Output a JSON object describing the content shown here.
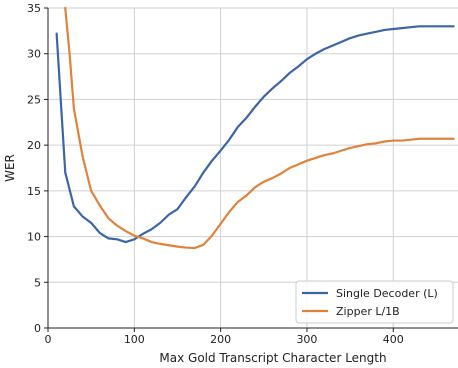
{
  "chart_data": {
    "type": "line",
    "title": "",
    "xlabel": "Max Gold Transcript Character Length",
    "ylabel": "WER",
    "xlim": [
      0,
      475
    ],
    "ylim": [
      0,
      35
    ],
    "xticks": [
      0,
      100,
      200,
      300,
      400
    ],
    "yticks": [
      0,
      5,
      10,
      15,
      20,
      25,
      30,
      35
    ],
    "grid": true,
    "legend_position": "bottom-right",
    "series": [
      {
        "name": "Single Decoder (L)",
        "color": "#3c65a8",
        "x": [
          10,
          20,
          30,
          40,
          50,
          60,
          70,
          80,
          90,
          100,
          110,
          120,
          130,
          140,
          150,
          160,
          170,
          180,
          190,
          200,
          210,
          220,
          230,
          240,
          250,
          260,
          270,
          280,
          290,
          300,
          310,
          320,
          330,
          340,
          350,
          360,
          370,
          380,
          390,
          400,
          410,
          420,
          430,
          440,
          450,
          460,
          470
        ],
        "values": [
          32.2,
          17.0,
          13.3,
          12.2,
          11.5,
          10.4,
          9.8,
          9.7,
          9.4,
          9.7,
          10.3,
          10.8,
          11.5,
          12.4,
          13.0,
          14.3,
          15.5,
          17.0,
          18.3,
          19.4,
          20.6,
          22.0,
          23.0,
          24.2,
          25.3,
          26.2,
          27.0,
          27.9,
          28.6,
          29.4,
          30.0,
          30.5,
          30.9,
          31.3,
          31.7,
          32.0,
          32.2,
          32.4,
          32.6,
          32.7,
          32.8,
          32.9,
          33.0,
          33.0,
          33.0,
          33.0,
          33.0
        ]
      },
      {
        "name": "Zipper L/1B",
        "color": "#e0823c",
        "x": [
          20,
          25,
          30,
          40,
          50,
          60,
          70,
          80,
          90,
          100,
          110,
          120,
          130,
          140,
          150,
          160,
          170,
          180,
          190,
          200,
          210,
          220,
          230,
          240,
          250,
          260,
          270,
          280,
          290,
          300,
          310,
          320,
          330,
          340,
          350,
          360,
          370,
          380,
          390,
          400,
          410,
          420,
          430,
          440,
          450,
          460,
          470
        ],
        "values": [
          35.0,
          30.0,
          24.0,
          18.8,
          15.0,
          13.4,
          12.0,
          11.2,
          10.6,
          10.1,
          9.8,
          9.4,
          9.2,
          9.05,
          8.9,
          8.8,
          8.75,
          9.1,
          10.1,
          11.4,
          12.7,
          13.8,
          14.5,
          15.4,
          16.0,
          16.4,
          16.9,
          17.5,
          17.9,
          18.3,
          18.6,
          18.9,
          19.1,
          19.4,
          19.7,
          19.9,
          20.1,
          20.2,
          20.4,
          20.5,
          20.5,
          20.6,
          20.7,
          20.7,
          20.7,
          20.7,
          20.7
        ]
      }
    ]
  }
}
